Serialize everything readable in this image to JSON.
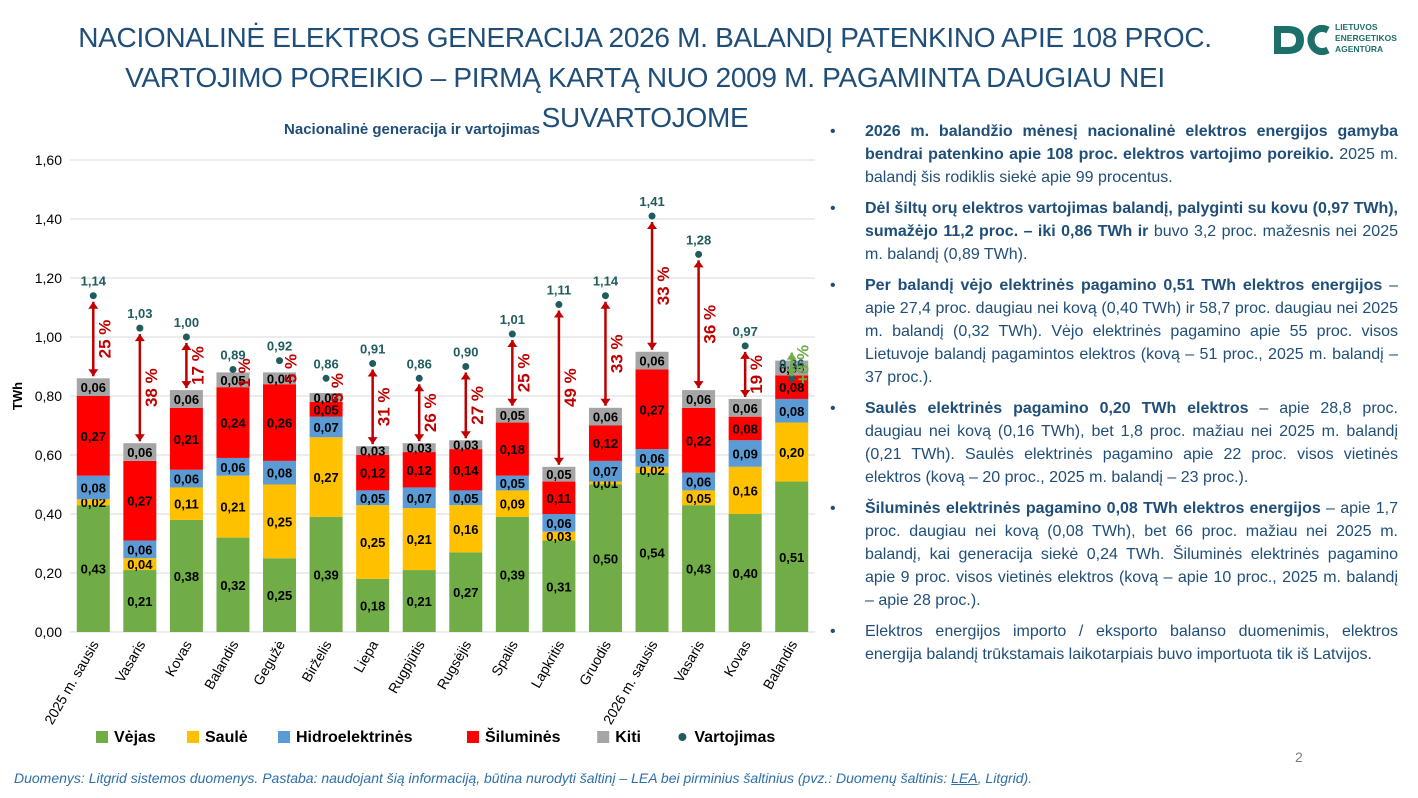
{
  "title": "NACIONALINĖ ELEKTROS GENERACIJA 2026 M. BALANDĮ PATENKINO APIE 108 PROC. VARTOJIMO POREIKIO – PIRMĄ KARTĄ NUO 2009 M. PAGAMINTA DAUGIAU NEI SUVARTOJOME",
  "logo": {
    "text": "LIETUVOS\nENERGETIKOS\nAGENTŪRA",
    "icon": "lea-logo-icon",
    "color": "#1e6f6a"
  },
  "chart_data": {
    "type": "bar",
    "stacked": true,
    "title": "Nacionalinė generacija ir vartojimas",
    "ylabel": "TWh",
    "ylim": [
      0,
      1.6
    ],
    "yticks": [
      "0,00",
      "0,20",
      "0,40",
      "0,60",
      "0,80",
      "1,00",
      "1,20",
      "1,40",
      "1,60"
    ],
    "grid": true,
    "legend_position": "bottom",
    "categories": [
      "2025 m. sausis",
      "Vasaris",
      "Kovas",
      "Balandis",
      "Gegužė",
      "Birželis",
      "Liepa",
      "Rugpjūtis",
      "Rugsėjis",
      "Spalis",
      "Lapkritis",
      "Gruodis",
      "2026 m. sausis",
      "Vasaris",
      "Kovas",
      "Balandis"
    ],
    "series": [
      {
        "name": "Vėjas",
        "color": "#70ad47",
        "values": [
          0.43,
          0.21,
          0.38,
          0.32,
          0.25,
          0.39,
          0.18,
          0.21,
          0.27,
          0.39,
          0.31,
          0.5,
          0.54,
          0.43,
          0.4,
          0.51
        ],
        "labels": [
          "0,43",
          "0,21",
          "0,38",
          "0,32",
          "0,25",
          "0,39",
          "0,18",
          "0,21",
          "0,27",
          "0,39",
          "0,31",
          "0,50",
          "0,54",
          "0,43",
          "0,40",
          "0,51"
        ]
      },
      {
        "name": "Saulė",
        "color": "#ffc000",
        "values": [
          0.02,
          0.04,
          0.11,
          0.21,
          0.25,
          0.27,
          0.25,
          0.21,
          0.16,
          0.09,
          0.03,
          0.01,
          0.02,
          0.05,
          0.16,
          0.2
        ],
        "labels": [
          "0,02",
          "0,04",
          "0,11",
          "0,21",
          "0,25",
          "0,27",
          "0,25",
          "0,21",
          "0,16",
          "0,09",
          "0,03",
          "0,01",
          "0,02",
          "0,05",
          "0,16",
          "0,20"
        ]
      },
      {
        "name": "Hidroelektrinės",
        "color": "#5b9bd5",
        "values": [
          0.08,
          0.06,
          0.06,
          0.06,
          0.08,
          0.07,
          0.05,
          0.07,
          0.05,
          0.05,
          0.06,
          0.07,
          0.06,
          0.06,
          0.09,
          0.08
        ],
        "labels": [
          "0,08",
          "0,06",
          "0,06",
          "0,06",
          "0,08",
          "0,07",
          "0,05",
          "0,07",
          "0,05",
          "0,05",
          "0,06",
          "0,07",
          "0,06",
          "0,06",
          "0,09",
          "0,08"
        ]
      },
      {
        "name": "Šiluminės",
        "color": "#ff0000",
        "values": [
          0.27,
          0.27,
          0.21,
          0.24,
          0.26,
          0.05,
          0.12,
          0.12,
          0.14,
          0.18,
          0.11,
          0.12,
          0.27,
          0.22,
          0.08,
          0.08
        ],
        "labels": [
          "0,27",
          "0,27",
          "0,21",
          "0,24",
          "0,26",
          "0,05",
          "0,12",
          "0,12",
          "0,14",
          "0,18",
          "0,11",
          "0,12",
          "0,27",
          "0,22",
          "0,08",
          "0,08"
        ]
      },
      {
        "name": "Kiti",
        "color": "#a5a5a5",
        "values": [
          0.06,
          0.06,
          0.06,
          0.05,
          0.04,
          0.03,
          0.03,
          0.03,
          0.03,
          0.05,
          0.05,
          0.06,
          0.06,
          0.06,
          0.06,
          0.05
        ],
        "labels": [
          "0,06",
          "0,06",
          "0,06",
          "0,05",
          "0,04",
          "0,03",
          "0,03",
          "0,03",
          "0,03",
          "0,05",
          "0,05",
          "0,06",
          "0,06",
          "0,06",
          "0,06",
          "0,05"
        ]
      }
    ],
    "consumption": {
      "name": "Vartojimas",
      "color": "#1f5c5e",
      "values": [
        1.14,
        1.03,
        1.0,
        0.89,
        0.92,
        0.86,
        0.91,
        0.86,
        0.9,
        1.01,
        1.11,
        1.14,
        1.41,
        1.28,
        0.97,
        0.86
      ],
      "labels": [
        "1,14",
        "1,03",
        "1,00",
        "0,89",
        "0,92",
        "0,86",
        "0,91",
        "0,86",
        "0,90",
        "1,01",
        "1,11",
        "1,14",
        "1,41",
        "1,28",
        "0,97",
        "0,86"
      ]
    },
    "gap_labels": [
      "25 %",
      "38 %",
      "17 %",
      "1 %",
      "5 %",
      "5 %",
      "31 %",
      "26 %",
      "27 %",
      "25 %",
      "49 %",
      "33 %",
      "33 %",
      "36 %",
      "19 %",
      "+8 %"
    ],
    "gap_colors": {
      "deficit": "#c00000",
      "surplus": "#70ad47"
    }
  },
  "bullets": [
    {
      "bold": "2026 m. balandžio mėnesį nacionalinė elektros energijos gamyba bendrai patenkino apie 108 proc. elektros vartojimo poreikio.",
      "text": " 2025 m. balandį šis rodiklis siekė apie 99 procentus."
    },
    {
      "bold": "Dėl šiltų orų elektros vartojimas balandį, palyginti su kovu (0,97 TWh), sumažėjo 11,2 proc. – iki 0,86 TWh ir",
      "text": " buvo 3,2 proc. mažesnis nei 2025 m. balandį (0,89 TWh)."
    },
    {
      "bold": "Per balandį vėjo elektrinės pagamino 0,51 TWh elektros energijos",
      "text": " – apie 27,4 proc. daugiau nei kovą (0,40 TWh) ir 58,7 proc. daugiau nei 2025 m. balandį (0,32 TWh). Vėjo elektrinės pagamino apie 55 proc. visos Lietuvoje balandį pagamintos elektros (kovą – 51 proc., 2025 m. balandį – 37 proc.)."
    },
    {
      "bold": "Saulės elektrinės pagamino 0,20 TWh elektros",
      "text": " – apie 28,8 proc. daugiau nei kovą (0,16 TWh), bet 1,8 proc. mažiau nei 2025 m. balandį (0,21 TWh). Saulės elektrinės  pagamino apie 22 proc. visos vietinės elektros (kovą – 20 proc., 2025 m. balandį – 23 proc.)."
    },
    {
      "bold": "Šiluminės elektrinės pagamino 0,08 TWh elektros energijos",
      "text": " – apie 1,7 proc. daugiau nei kovą (0,08 TWh), bet 66 proc. mažiau nei 2025 m. balandį, kai generacija siekė 0,24 TWh. Šiluminės elektrinės pagamino apie 9 proc. visos vietinės elektros (kovą – apie 10 proc., 2025 m. balandį – apie 28 proc.)."
    },
    {
      "bold": "",
      "text": "Elektros energijos importo / eksporto balanso duomenimis, elektros energija balandį trūkstamais laikotarpiais buvo importuota tik iš Latvijos."
    }
  ],
  "page_number": "2",
  "footer": {
    "text": "Duomenys: Litgrid sistemos duomenys. Pastaba: naudojant šią informaciją, būtina nurodyti šaltinį – LEA bei pirminius šaltinius (pvz.: Duomenų šaltinis: ",
    "link": "LEA",
    "tail": ", Litgrid)."
  }
}
